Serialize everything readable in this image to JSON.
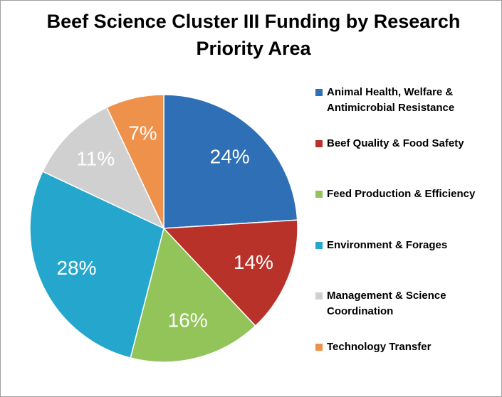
{
  "chart_data": {
    "type": "pie",
    "title": "Beef Science Cluster III Funding by Research Priority Area",
    "categories": [
      "Animal Health, Welfare & Antimicrobial Resistance",
      "Beef Quality & Food Safety",
      "Feed Production & Efficiency",
      "Environment & Forages",
      "Management & Science Coordination",
      "Technology Transfer"
    ],
    "values": [
      24,
      14,
      16,
      28,
      11,
      7
    ],
    "value_labels": [
      "24%",
      "14%",
      "16%",
      "28%",
      "11%",
      "7%"
    ],
    "colors": [
      "#2e6fb5",
      "#b8322a",
      "#93c45a",
      "#25a7cd",
      "#d0d0d0",
      "#ee914b"
    ],
    "legend": "right"
  }
}
